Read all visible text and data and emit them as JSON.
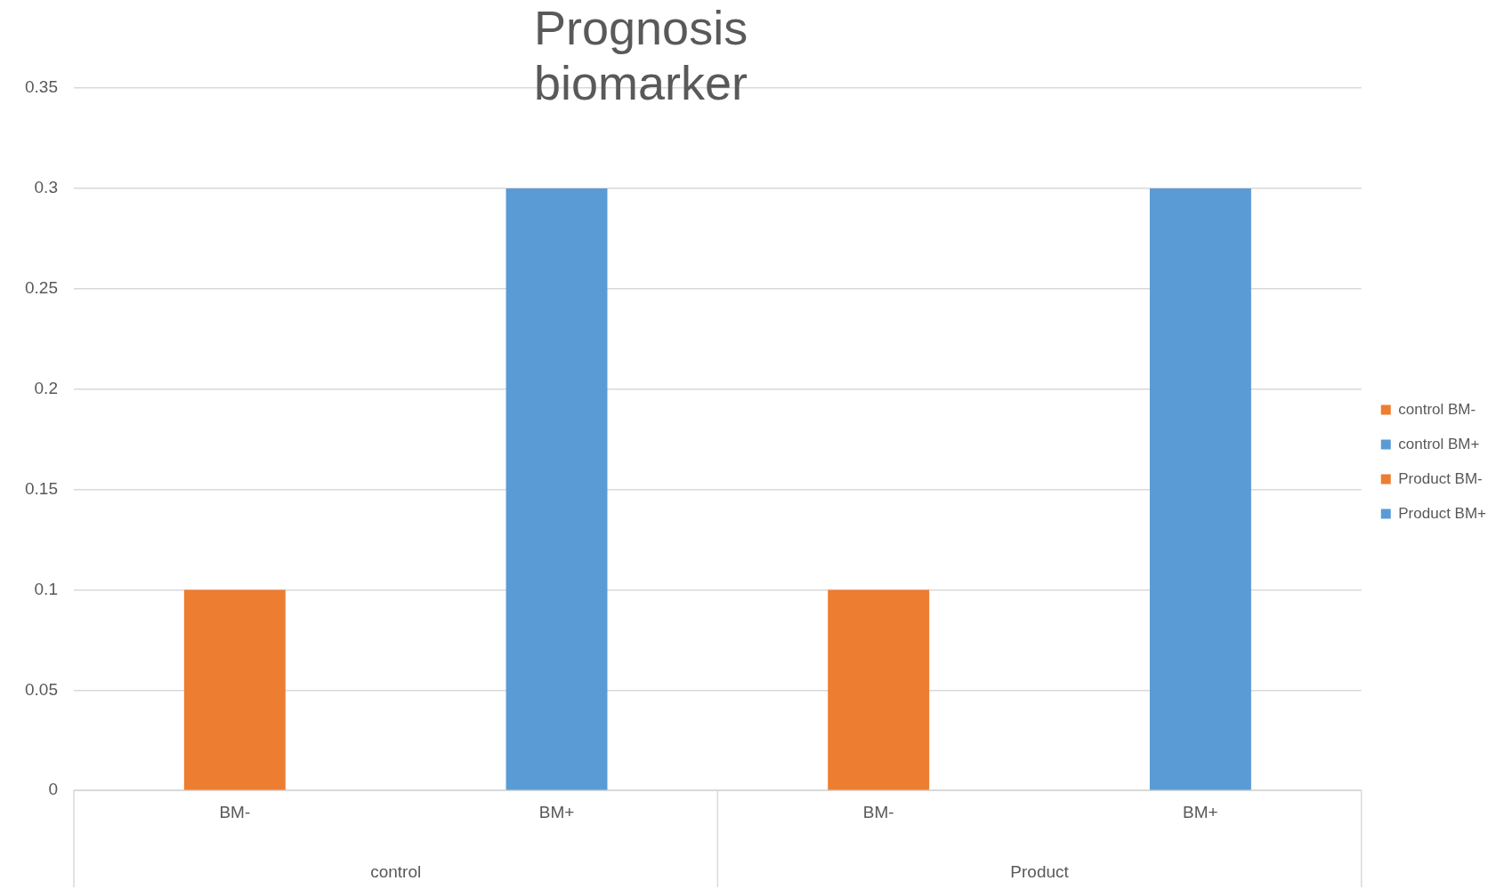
{
  "chart_data": {
    "type": "bar",
    "title": "Prognosis biomarker",
    "categories": [
      "BM-",
      "BM+",
      "BM-",
      "BM+"
    ],
    "series": [
      {
        "name": "control BM-",
        "color": "#ed7d31",
        "values": [
          0.1,
          null,
          null,
          null
        ]
      },
      {
        "name": "control BM+",
        "color": "#5b9bd5",
        "values": [
          null,
          0.3,
          null,
          null
        ]
      },
      {
        "name": "Product BM-",
        "color": "#ed7d31",
        "values": [
          null,
          null,
          0.1,
          null
        ]
      },
      {
        "name": "Product BM+",
        "color": "#5b9bd5",
        "values": [
          null,
          null,
          null,
          0.3
        ]
      }
    ],
    "annotations": [
      "control",
      "Product"
    ],
    "ylim": [
      0,
      0.35
    ],
    "yticks": [
      0,
      0.05,
      0.1,
      0.15,
      0.2,
      0.25,
      0.3,
      0.35
    ],
    "grid": "y",
    "legend": "right"
  }
}
